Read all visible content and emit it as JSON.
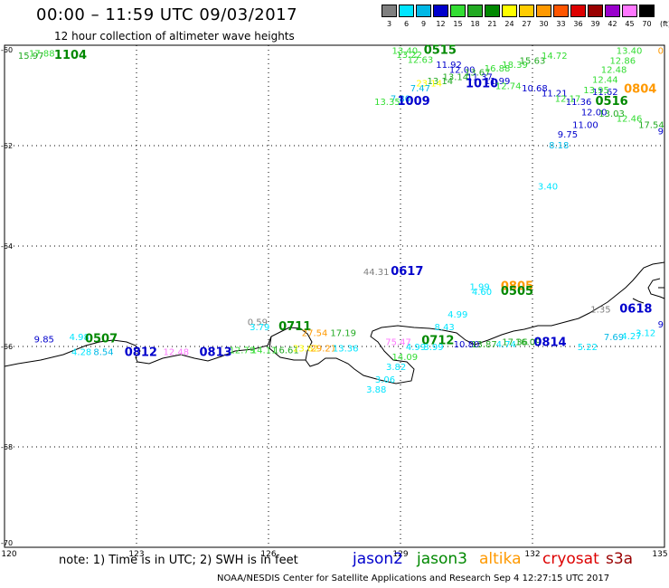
{
  "header": {
    "title": "00:00 – 11:59 UTC 09/03/2017",
    "subtitle": "12 hour collection of altimeter wave heights"
  },
  "scale": {
    "unit": "(ft)",
    "ticks": [
      "3",
      "6",
      "9",
      "12",
      "15",
      "18",
      "21",
      "24",
      "27",
      "30",
      "33",
      "36",
      "39",
      "42",
      "45",
      "70"
    ],
    "colors": [
      "#7f7f7f",
      "#00e5ff",
      "#00b8e6",
      "#0000cc",
      "#33dd33",
      "#22aa22",
      "#008800",
      "#ffff00",
      "#ffcc00",
      "#ff9900",
      "#ff5500",
      "#dd0000",
      "#990000",
      "#9900cc",
      "#ff77ff",
      "#000000"
    ]
  },
  "footer": {
    "note": "note:  1) Time is in UTC;  2) SWH is in feet",
    "credit": "NOAA/NESDIS Center for Satellite Applications and Research    Sep  4 12:27:15 UTC 2017",
    "satellites": [
      {
        "name": "jason2",
        "color": "#0000cc"
      },
      {
        "name": "jason3",
        "color": "#008800"
      },
      {
        "name": "altika",
        "color": "#ff9900"
      },
      {
        "name": "cryosat",
        "color": "#dd0000"
      },
      {
        "name": "s3a",
        "color": "#990000"
      }
    ]
  },
  "map": {
    "lon_labels": [
      "120",
      "123",
      "126",
      "129",
      "132",
      "135"
    ],
    "lat_labels": [
      "-60",
      "-62",
      "-64",
      "-66",
      "-68",
      "-70"
    ],
    "lon_range": [
      120,
      135
    ],
    "lat_range": [
      -70,
      -60
    ]
  },
  "labels": [
    {
      "text": "17.88",
      "color": "#33dd33",
      "lon": 120.85,
      "lat": -60.15
    },
    {
      "text": "15.97",
      "color": "#22aa22",
      "lon": 120.6,
      "lat": -60.2
    },
    {
      "text": "1104",
      "color": "#008800",
      "lon": 121.5,
      "lat": -60.2
    },
    {
      "text": "13.40",
      "color": "#33dd33",
      "lon": 129.1,
      "lat": -60.1
    },
    {
      "text": "0515",
      "color": "#008800",
      "lon": 129.9,
      "lat": -60.1
    },
    {
      "text": "13.22",
      "color": "#33dd33",
      "lon": 129.2,
      "lat": -60.18
    },
    {
      "text": "12.63",
      "color": "#33dd33",
      "lon": 129.45,
      "lat": -60.28
    },
    {
      "text": "11.92",
      "color": "#0000cc",
      "lon": 130.1,
      "lat": -60.38
    },
    {
      "text": "12.00",
      "color": "#0000cc",
      "lon": 130.4,
      "lat": -60.48
    },
    {
      "text": "13.67",
      "color": "#22aa22",
      "lon": 130.75,
      "lat": -60.53
    },
    {
      "text": "13.14",
      "color": "#22aa22",
      "lon": 130.25,
      "lat": -60.62
    },
    {
      "text": "16.88",
      "color": "#33dd33",
      "lon": 131.2,
      "lat": -60.45
    },
    {
      "text": "18.39",
      "color": "#33dd33",
      "lon": 131.6,
      "lat": -60.38
    },
    {
      "text": "15.63",
      "color": "#22aa22",
      "lon": 132.0,
      "lat": -60.3
    },
    {
      "text": "14.72",
      "color": "#33dd33",
      "lon": 132.5,
      "lat": -60.2
    },
    {
      "text": "11.37",
      "color": "#0000cc",
      "lon": 130.8,
      "lat": -60.62
    },
    {
      "text": "13.14",
      "color": "#22aa22",
      "lon": 129.9,
      "lat": -60.7
    },
    {
      "text": "23.14",
      "color": "#ffff00",
      "lon": 129.65,
      "lat": -60.75
    },
    {
      "text": "1010",
      "color": "#0000cc",
      "lon": 130.85,
      "lat": -60.77
    },
    {
      "text": "11.99",
      "color": "#0000cc",
      "lon": 131.2,
      "lat": -60.7
    },
    {
      "text": "12.74",
      "color": "#33dd33",
      "lon": 131.45,
      "lat": -60.8
    },
    {
      "text": "7.47",
      "color": "#00b8e6",
      "lon": 129.45,
      "lat": -60.85
    },
    {
      "text": "10.68",
      "color": "#0000cc",
      "lon": 132.05,
      "lat": -60.85
    },
    {
      "text": "11.21",
      "color": "#0000cc",
      "lon": 132.5,
      "lat": -60.95
    },
    {
      "text": "7.80",
      "color": "#00b8e6",
      "lon": 129.0,
      "lat": -61.05
    },
    {
      "text": "13.35",
      "color": "#33dd33",
      "lon": 128.7,
      "lat": -61.12
    },
    {
      "text": "1009",
      "color": "#0000cc",
      "lon": 129.3,
      "lat": -61.12
    },
    {
      "text": "12.17",
      "color": "#33dd33",
      "lon": 132.8,
      "lat": -61.05
    },
    {
      "text": "11.36",
      "color": "#0000cc",
      "lon": 133.05,
      "lat": -61.12
    },
    {
      "text": "0516",
      "color": "#008800",
      "lon": 133.8,
      "lat": -61.12
    },
    {
      "text": "11.62",
      "color": "#0000cc",
      "lon": 133.65,
      "lat": -60.92
    },
    {
      "text": "12.00",
      "color": "#0000cc",
      "lon": 133.4,
      "lat": -61.32
    },
    {
      "text": "13.03",
      "color": "#22aa22",
      "lon": 133.8,
      "lat": -61.35
    },
    {
      "text": "12.46",
      "color": "#33dd33",
      "lon": 134.2,
      "lat": -61.45
    },
    {
      "text": "17.54",
      "color": "#22aa22",
      "lon": 134.7,
      "lat": -61.58
    },
    {
      "text": "11.00",
      "color": "#0000cc",
      "lon": 133.2,
      "lat": -61.58
    },
    {
      "text": "9.75",
      "color": "#0000cc",
      "lon": 132.8,
      "lat": -61.77
    },
    {
      "text": "8.18",
      "color": "#00b8e6",
      "lon": 132.6,
      "lat": -61.98
    },
    {
      "text": "13.40",
      "color": "#33dd33",
      "lon": 134.2,
      "lat": -60.1
    },
    {
      "text": "12.86",
      "color": "#33dd33",
      "lon": 134.05,
      "lat": -60.3
    },
    {
      "text": "12.48",
      "color": "#33dd33",
      "lon": 133.85,
      "lat": -60.48
    },
    {
      "text": "12.44",
      "color": "#33dd33",
      "lon": 133.65,
      "lat": -60.68
    },
    {
      "text": "13.95",
      "color": "#33dd33",
      "lon": 133.45,
      "lat": -60.88
    },
    {
      "text": "0804",
      "color": "#ff9900",
      "lon": 134.45,
      "lat": -60.87
    },
    {
      "text": "3.40",
      "color": "#00e5ff",
      "lon": 132.35,
      "lat": -62.8
    },
    {
      "text": "44.31",
      "color": "#7f7f7f",
      "lon": 128.45,
      "lat": -64.5
    },
    {
      "text": "0617",
      "color": "#0000cc",
      "lon": 129.15,
      "lat": -64.5
    },
    {
      "text": "1.99",
      "color": "#00e5ff",
      "lon": 130.8,
      "lat": -64.8
    },
    {
      "text": "4.60",
      "color": "#00e5ff",
      "lon": 130.85,
      "lat": -64.9
    },
    {
      "text": "0805",
      "color": "#ff9900",
      "lon": 131.65,
      "lat": -64.8
    },
    {
      "text": "0505",
      "color": "#008800",
      "lon": 131.65,
      "lat": -64.9
    },
    {
      "text": "1.35",
      "color": "#7f7f7f",
      "lon": 133.55,
      "lat": -65.25
    },
    {
      "text": "0618",
      "color": "#0000cc",
      "lon": 134.35,
      "lat": -65.25
    },
    {
      "text": "4.99",
      "color": "#00e5ff",
      "lon": 130.3,
      "lat": -65.35
    },
    {
      "text": "8.43",
      "color": "#00e5ff",
      "lon": 130.0,
      "lat": -65.6
    },
    {
      "text": "0.59",
      "color": "#7f7f7f",
      "lon": 125.75,
      "lat": -65.5
    },
    {
      "text": "3.79",
      "color": "#00e5ff",
      "lon": 125.8,
      "lat": -65.6
    },
    {
      "text": "0711",
      "color": "#008800",
      "lon": 126.6,
      "lat": -65.6
    },
    {
      "text": "27.54",
      "color": "#ff9900",
      "lon": 127.05,
      "lat": -65.72
    },
    {
      "text": "17.19",
      "color": "#22aa22",
      "lon": 127.7,
      "lat": -65.72
    },
    {
      "text": "9.85",
      "color": "#0000cc",
      "lon": 120.9,
      "lat": -65.85
    },
    {
      "text": "4.98",
      "color": "#00e5ff",
      "lon": 121.7,
      "lat": -65.8
    },
    {
      "text": "0507",
      "color": "#008800",
      "lon": 122.2,
      "lat": -65.85
    },
    {
      "text": "75.47",
      "color": "#ff77ff",
      "lon": 128.95,
      "lat": -65.9
    },
    {
      "text": "0712",
      "color": "#008800",
      "lon": 129.85,
      "lat": -65.88
    },
    {
      "text": "4.99",
      "color": "#00e5ff",
      "lon": 129.35,
      "lat": -66.0
    },
    {
      "text": "3.99",
      "color": "#00e5ff",
      "lon": 129.75,
      "lat": -66.0
    },
    {
      "text": "10.80",
      "color": "#0000cc",
      "lon": 130.5,
      "lat": -65.95
    },
    {
      "text": "13.87",
      "color": "#22aa22",
      "lon": 130.9,
      "lat": -65.95
    },
    {
      "text": "4.74",
      "color": "#00e5ff",
      "lon": 131.4,
      "lat": -65.95
    },
    {
      "text": "17.36",
      "color": "#22aa22",
      "lon": 131.6,
      "lat": -65.9
    },
    {
      "text": "16.09",
      "color": "#22aa22",
      "lon": 131.9,
      "lat": -65.9
    },
    {
      "text": "0814",
      "color": "#0000cc",
      "lon": 132.4,
      "lat": -65.92
    },
    {
      "text": "7.69",
      "color": "#00b8e6",
      "lon": 133.85,
      "lat": -65.8
    },
    {
      "text": "4.27",
      "color": "#00e5ff",
      "lon": 134.25,
      "lat": -65.78
    },
    {
      "text": "3.12",
      "color": "#00e5ff",
      "lon": 134.8,
      "lat": -65.72
    },
    {
      "text": "5.22",
      "color": "#00e5ff",
      "lon": 133.25,
      "lat": -66.0
    },
    {
      "text": "4.28",
      "color": "#00e5ff",
      "lon": 121.75,
      "lat": -66.1
    },
    {
      "text": "8.54",
      "color": "#00b8e6",
      "lon": 122.25,
      "lat": -66.1
    },
    {
      "text": "0812",
      "color": "#0000cc",
      "lon": 123.1,
      "lat": -66.12
    },
    {
      "text": "12.48",
      "color": "#ff77ff",
      "lon": 123.9,
      "lat": -66.1
    },
    {
      "text": "0813",
      "color": "#0000cc",
      "lon": 124.8,
      "lat": -66.12
    },
    {
      "text": "12.79",
      "color": "#33dd33",
      "lon": 125.4,
      "lat": -66.06
    },
    {
      "text": "14.11",
      "color": "#33dd33",
      "lon": 125.9,
      "lat": -66.06
    },
    {
      "text": "16.61",
      "color": "#22aa22",
      "lon": 126.4,
      "lat": -66.06
    },
    {
      "text": "23.62",
      "color": "#ffff00",
      "lon": 126.85,
      "lat": -66.03
    },
    {
      "text": "29.21",
      "color": "#ff9900",
      "lon": 127.25,
      "lat": -66.03
    },
    {
      "text": "13.36",
      "color": "#00e5ff",
      "lon": 127.75,
      "lat": -66.03
    },
    {
      "text": "14.09",
      "color": "#33dd33",
      "lon": 129.1,
      "lat": -66.2
    },
    {
      "text": "3.82",
      "color": "#00e5ff",
      "lon": 128.9,
      "lat": -66.4
    },
    {
      "text": "3.06",
      "color": "#00e5ff",
      "lon": 128.65,
      "lat": -66.65
    },
    {
      "text": "3.88",
      "color": "#00e5ff",
      "lon": 128.45,
      "lat": -66.85
    },
    {
      "text": "0",
      "color": "#ff9900",
      "lon": 135.0,
      "lat": -60.1
    },
    {
      "text": "9",
      "color": "#0000cc",
      "lon": 135.0,
      "lat": -61.7
    },
    {
      "text": "9",
      "color": "#0000cc",
      "lon": 135.0,
      "lat": -65.55
    }
  ]
}
